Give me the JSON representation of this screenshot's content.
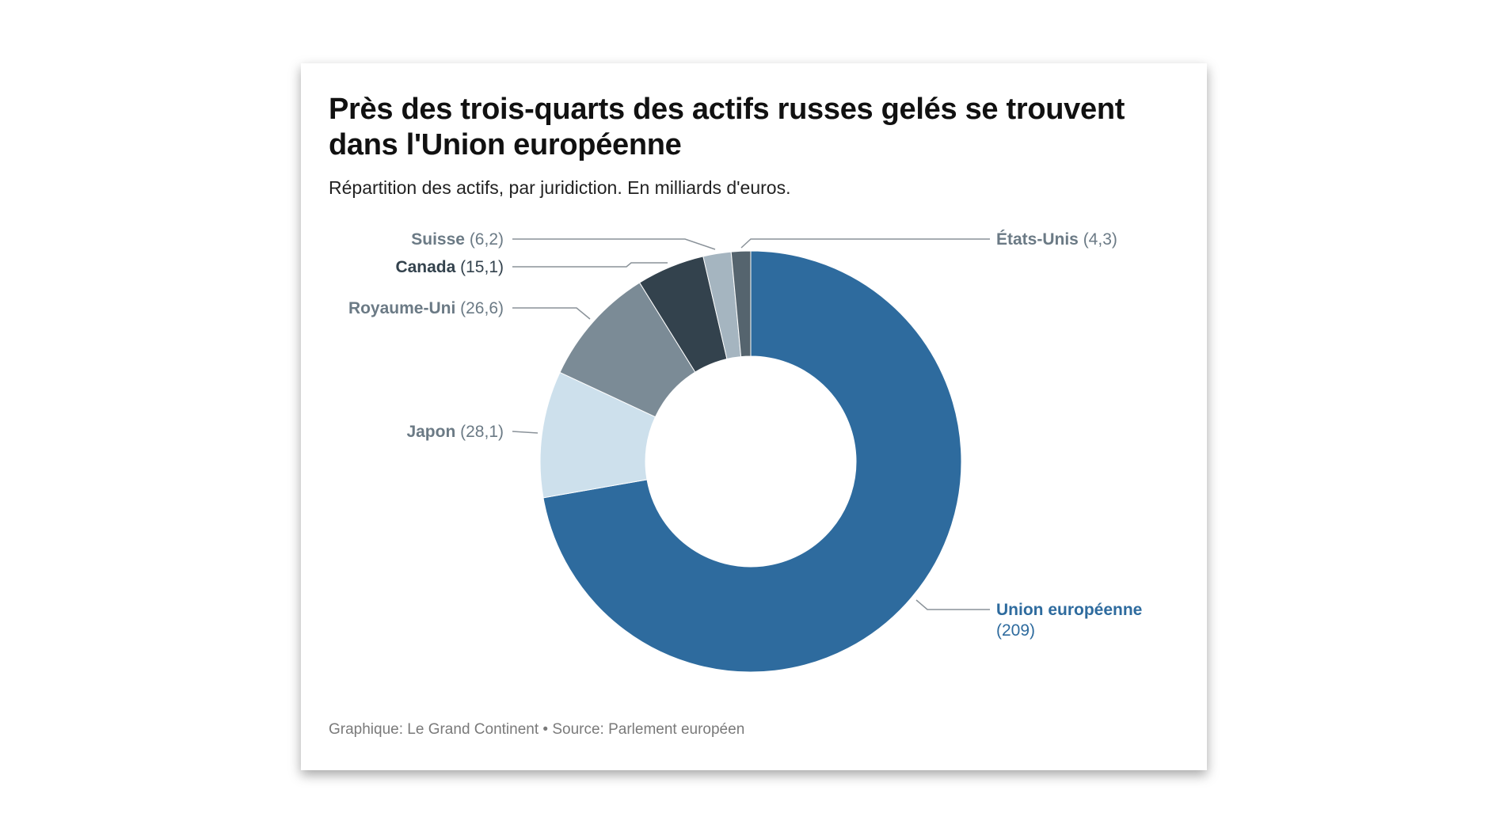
{
  "chart_data": {
    "type": "pie",
    "donut": true,
    "title": "Près des trois-quarts des actifs russes gelés se trouvent dans l'Union européenne",
    "subtitle": "Répartition des actifs, par juridiction. En milliards d'euros.",
    "footer": "Graphique: Le Grand Continent • Source: Parlement européen",
    "slices": [
      {
        "name": "Union européenne",
        "value": 209,
        "value_label": "(209)",
        "color": "#2e6b9e",
        "label_color": "#2e6b9e"
      },
      {
        "name": "Japon",
        "value": 28.1,
        "value_label": "(28,1)",
        "color": "#cde0ec",
        "label_color": "#6b7a85"
      },
      {
        "name": "Royaume-Uni",
        "value": 26.6,
        "value_label": "(26,6)",
        "color": "#7b8b96",
        "label_color": "#6b7a85"
      },
      {
        "name": "Canada",
        "value": 15.1,
        "value_label": "(15,1)",
        "color": "#33424d",
        "label_color": "#33424d"
      },
      {
        "name": "Suisse",
        "value": 6.2,
        "value_label": "(6,2)",
        "color": "#a5b5c0",
        "label_color": "#6b7a85"
      },
      {
        "name": "États-Unis",
        "value": 4.3,
        "value_label": "(4,3)",
        "color": "#55646e",
        "label_color": "#6b7a85"
      }
    ]
  }
}
